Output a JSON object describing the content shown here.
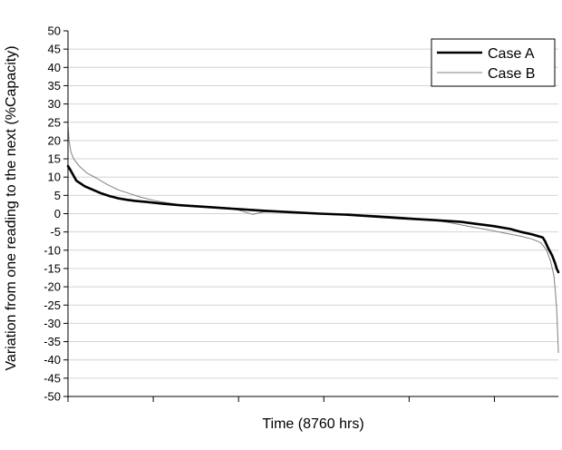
{
  "chart_data": {
    "type": "line",
    "title": "",
    "xlabel": "Time (8760 hrs)",
    "ylabel": "Variation from one reading to the next (%Capacity)",
    "xlim": [
      0,
      8760
    ],
    "ylim": [
      -50,
      50
    ],
    "yticks": [
      50,
      45,
      40,
      35,
      30,
      25,
      20,
      15,
      10,
      5,
      0,
      -5,
      -10,
      -15,
      -20,
      -25,
      -30,
      -35,
      -40,
      -45,
      -50
    ],
    "x_tick_labels_shown": false,
    "grid": "horizontal",
    "legend_position": "top-right",
    "series": [
      {
        "name": "Case A",
        "color": "#000000",
        "line_weight": "thick",
        "x": [
          0,
          40,
          150,
          300,
          450,
          600,
          750,
          900,
          1050,
          1200,
          1400,
          1700,
          2000,
          2500,
          3000,
          3500,
          4000,
          4500,
          5000,
          5500,
          6000,
          6500,
          7000,
          7300,
          7600,
          7900,
          8100,
          8300,
          8480,
          8520,
          8580,
          8650,
          8700,
          8730,
          8760
        ],
        "y": [
          13,
          12,
          9,
          7.5,
          6.5,
          5.5,
          4.8,
          4.2,
          3.8,
          3.5,
          3.2,
          2.7,
          2.3,
          1.8,
          1.3,
          0.8,
          0.4,
          0,
          -0.3,
          -0.8,
          -1.3,
          -1.7,
          -2.2,
          -2.8,
          -3.4,
          -4.2,
          -5,
          -5.7,
          -6.5,
          -7.5,
          -9.5,
          -11.5,
          -13.5,
          -15,
          -16
        ]
      },
      {
        "name": "Case B",
        "color": "#808080",
        "line_weight": "thin",
        "x": [
          0,
          20,
          50,
          100,
          200,
          350,
          500,
          700,
          900,
          1100,
          1300,
          1600,
          2000,
          2500,
          3000,
          3300,
          3500,
          4000,
          4500,
          5000,
          5500,
          6000,
          6500,
          6800,
          7200,
          7500,
          7800,
          8100,
          8300,
          8450,
          8550,
          8620,
          8680,
          8710,
          8730,
          8745,
          8760
        ],
        "y": [
          24,
          20,
          17,
          15,
          13,
          11,
          9.8,
          8,
          6.5,
          5.5,
          4.5,
          3.4,
          2.4,
          1.7,
          1.2,
          -0.2,
          0.5,
          0.4,
          0,
          -0.2,
          -0.5,
          -1,
          -1.7,
          -2.4,
          -3.6,
          -4.4,
          -5.3,
          -6.2,
          -7,
          -8,
          -10,
          -13,
          -17,
          -22,
          -26,
          -32,
          -38
        ]
      }
    ]
  }
}
